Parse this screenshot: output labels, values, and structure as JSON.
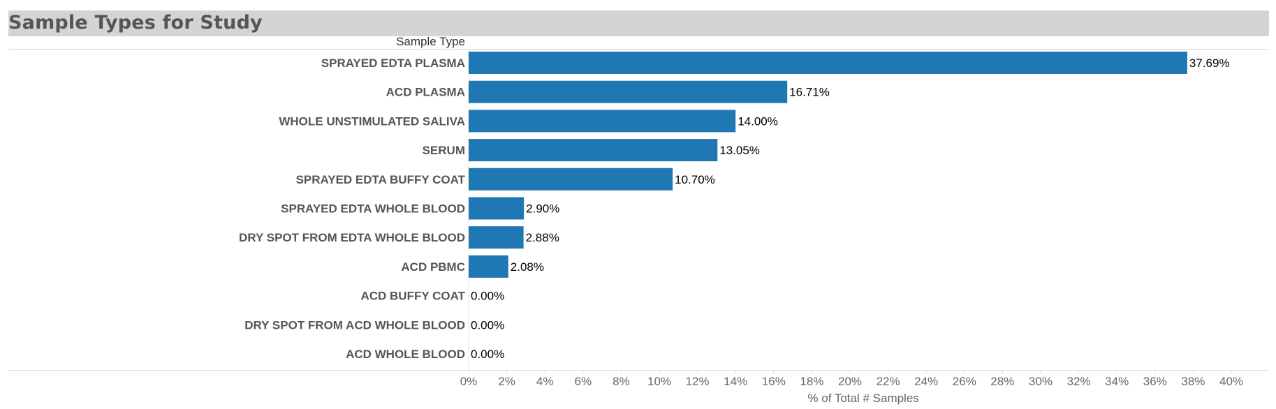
{
  "header": {
    "title": "Sample Types for Study",
    "column_header": "Sample Type"
  },
  "chart_data": {
    "type": "bar",
    "orientation": "horizontal",
    "categories": [
      "SPRAYED EDTA PLASMA",
      "ACD PLASMA",
      "WHOLE UNSTIMULATED SALIVA",
      "SERUM",
      "SPRAYED EDTA BUFFY COAT",
      "SPRAYED EDTA WHOLE BLOOD",
      "DRY SPOT FROM EDTA WHOLE BLOOD",
      "ACD PBMC",
      "ACD BUFFY COAT",
      "DRY SPOT FROM ACD WHOLE BLOOD",
      "ACD WHOLE BLOOD"
    ],
    "values": [
      37.69,
      16.71,
      14.0,
      13.05,
      10.7,
      2.9,
      2.88,
      2.08,
      0.0,
      0.0,
      0.0
    ],
    "value_labels": [
      "37.69%",
      "16.71%",
      "14.00%",
      "13.05%",
      "10.70%",
      "2.90%",
      "2.88%",
      "2.08%",
      "0.00%",
      "0.00%",
      "0.00%"
    ],
    "xlabel": "% of Total # Samples",
    "xlim": [
      0,
      41.5
    ],
    "xticks": [
      0,
      2,
      4,
      6,
      8,
      10,
      12,
      14,
      16,
      18,
      20,
      22,
      24,
      26,
      28,
      30,
      32,
      34,
      36,
      38,
      40
    ],
    "xtick_labels": [
      "0%",
      "2%",
      "4%",
      "6%",
      "8%",
      "10%",
      "12%",
      "14%",
      "16%",
      "18%",
      "20%",
      "22%",
      "24%",
      "26%",
      "28%",
      "30%",
      "32%",
      "34%",
      "36%",
      "38%",
      "40%"
    ],
    "bar_color": "#1f77b4",
    "grid": false
  }
}
